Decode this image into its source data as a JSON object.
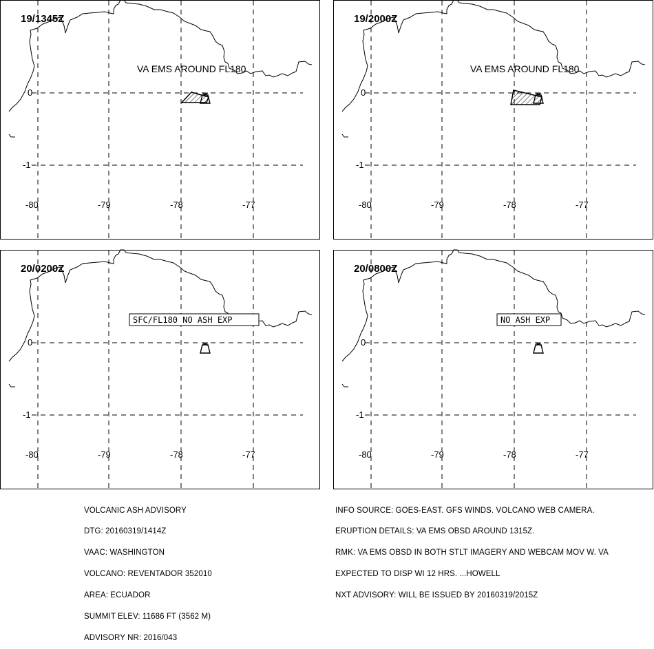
{
  "panels": [
    {
      "time": "19/1345Z",
      "label": "VA EMS AROUND FL180",
      "label_boxed": false,
      "ash": true,
      "ash_shape": "small"
    },
    {
      "time": "19/2000Z",
      "label": "VA EMS AROUND FL180",
      "label_boxed": false,
      "ash": true,
      "ash_shape": "large"
    },
    {
      "time": "20/0200Z",
      "label": "SFC/FL180 NO ASH EXP",
      "label_boxed": true,
      "ash": false
    },
    {
      "time": "20/0800Z",
      "label": "NO ASH EXP",
      "label_boxed": true,
      "ash": false
    }
  ],
  "axes": {
    "lon_ticks": [
      "-80",
      "-79",
      "-78",
      "-77"
    ],
    "lat_ticks": [
      "0",
      "-1"
    ]
  },
  "advisory": {
    "left": [
      "VOLCANIC ASH ADVISORY",
      "DTG: 20160319/1414Z",
      "VAAC: WASHINGTON",
      "VOLCANO: REVENTADOR 352010",
      "AREA: ECUADOR",
      "SUMMIT ELEV: 11686 FT (3562 M)",
      "ADVISORY NR: 2016/043"
    ],
    "right": [
      "INFO SOURCE: GOES-EAST. GFS WINDS. VOLCANO WEB CAMERA.",
      "ERUPTION DETAILS: VA EMS OBSD AROUND 1315Z.",
      "RMK: VA EMS OBSD IN BOTH STLT IMAGERY AND WEBCAM MOV W. VA",
      "EXPECTED TO DISP WI 12 HRS. ...HOWELL",
      "NXT ADVISORY: WILL BE ISSUED BY 20160319/2015Z"
    ]
  }
}
